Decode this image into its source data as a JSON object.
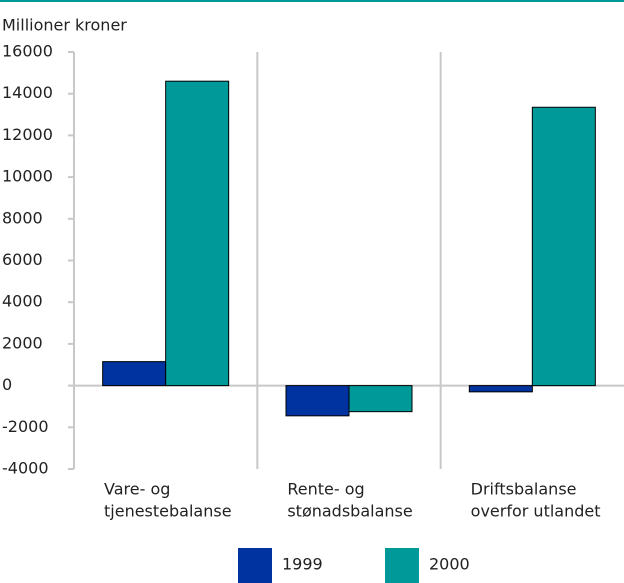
{
  "chart_data": {
    "type": "bar",
    "y_label": "Millioner kroner",
    "categories": [
      [
        "Vare- og",
        "tjenestebalanse"
      ],
      [
        "Rente- og",
        "stønadsbalanse"
      ],
      [
        "Driftsbalanse",
        "overfor utlandet"
      ]
    ],
    "series": [
      {
        "name": "1999",
        "color": "#0033a0",
        "values": [
          1150,
          -1450,
          -300
        ]
      },
      {
        "name": "2000",
        "color": "#009999",
        "values": [
          14600,
          -1250,
          13350
        ]
      }
    ],
    "ylim": [
      -4000,
      16000
    ],
    "yticks": [
      -4000,
      -2000,
      0,
      2000,
      4000,
      6000,
      8000,
      10000,
      12000,
      14000,
      16000
    ],
    "grid": true
  }
}
